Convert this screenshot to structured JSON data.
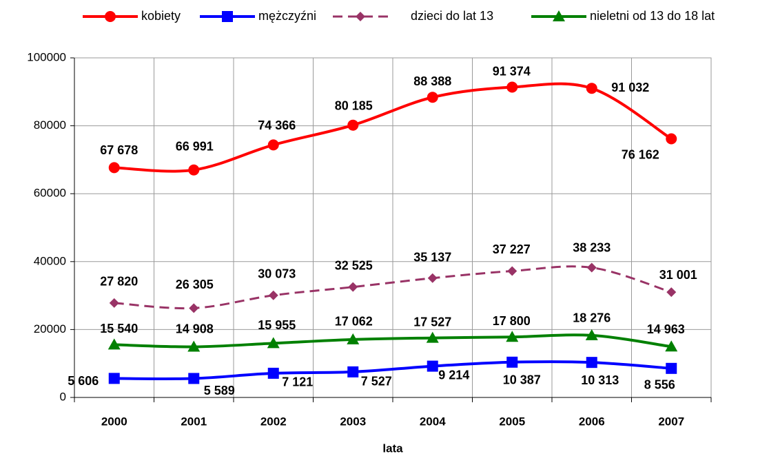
{
  "chart_data": {
    "type": "line",
    "x_label": "lata",
    "categories": [
      "2000",
      "2001",
      "2002",
      "2003",
      "2004",
      "2005",
      "2006",
      "2007"
    ],
    "series": [
      {
        "name": "kobiety",
        "color": "#ff0000",
        "marker": "circle",
        "dashed": false,
        "values": [
          67678,
          66991,
          74366,
          80185,
          88388,
          91374,
          91032,
          76162
        ],
        "value_labels": [
          "67 678",
          "66 991",
          "74 366",
          "80 185",
          "88 388",
          "91 374",
          "91 032",
          "76 162"
        ]
      },
      {
        "name": "mężczyźni",
        "color": "#0000ff",
        "marker": "square",
        "dashed": false,
        "values": [
          5606,
          5589,
          7121,
          7527,
          9214,
          10387,
          10313,
          8556
        ],
        "value_labels": [
          "5 606",
          "5 589",
          "7 121",
          "7 527",
          "9 214",
          "10 387",
          "10 313",
          "8 556"
        ]
      },
      {
        "name": "dzieci do lat 13",
        "color": "#993366",
        "marker": "diamond",
        "dashed": true,
        "values": [
          27820,
          26305,
          30073,
          32525,
          35137,
          37227,
          38233,
          31001
        ],
        "value_labels": [
          "27 820",
          "26 305",
          "30 073",
          "32 525",
          "35 137",
          "37 227",
          "38 233",
          "31 001"
        ]
      },
      {
        "name": "nieletni od 13 do 18 lat",
        "color": "#008000",
        "marker": "triangle",
        "dashed": false,
        "values": [
          15540,
          14908,
          15955,
          17062,
          17527,
          17800,
          18276,
          14963
        ],
        "value_labels": [
          "15 540",
          "14 908",
          "15 955",
          "17 062",
          "17 527",
          "17 800",
          "18 276",
          "14 963"
        ]
      }
    ],
    "ylim": [
      0,
      100000
    ],
    "yticks": [
      0,
      20000,
      40000,
      60000,
      80000,
      100000
    ],
    "grid": true,
    "legend": "top"
  }
}
